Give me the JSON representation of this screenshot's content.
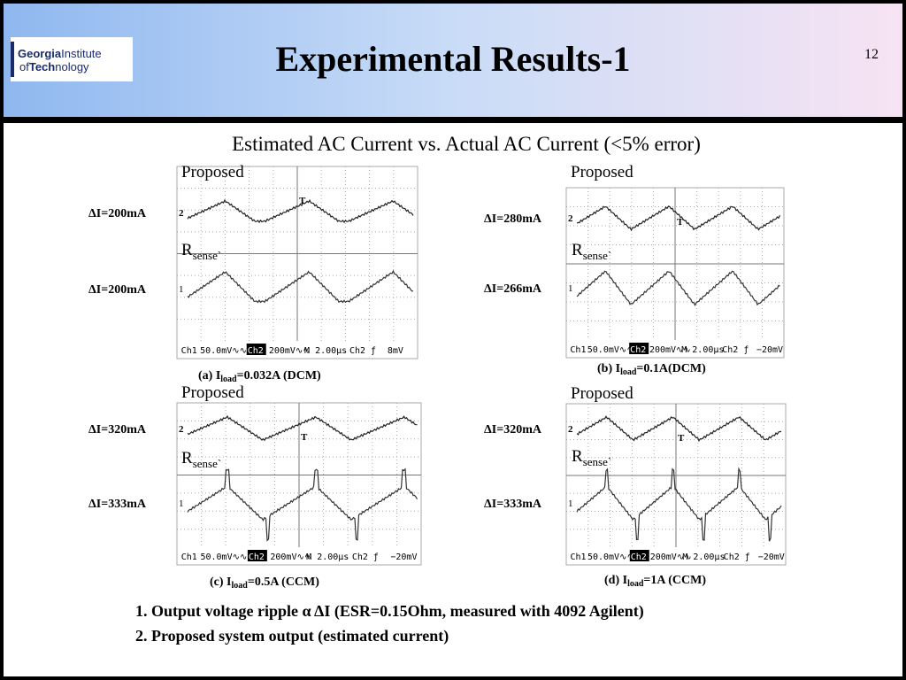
{
  "header": {
    "logo": {
      "line1a": "Georgia",
      "line1b": "Institute",
      "line2a": "of",
      "line2b": "Tech",
      "line2c": "nology"
    },
    "title": "Experimental Results-1",
    "page_number": "12"
  },
  "subtitle": "Estimated AC Current vs. Actual AC Current (<5% error)",
  "panels": [
    {
      "top_label": "Proposed",
      "bottom_label": "R",
      "bottom_label_sub": "sense`",
      "delta_top": "ΔI=200mA",
      "delta_bottom": "ΔI=200mA",
      "ch2_marker": "2",
      "ch1_marker": "1",
      "trigger_marker": "T",
      "caption": {
        "prefix": "(a) I",
        "sub": "load",
        "suffix": "=0.032A (DCM)"
      },
      "readout": [
        "Ch1",
        "50.0mV∿∿",
        "Ch2",
        "200mV∿∿",
        "M 2.00µs",
        "Ch2 ƒ",
        "8mV"
      ]
    },
    {
      "top_label": "Proposed",
      "bottom_label": "R",
      "bottom_label_sub": "sense`",
      "delta_top": "ΔI=280mA",
      "delta_bottom": "ΔI=266mA",
      "ch2_marker": "2",
      "ch1_marker": "1",
      "trigger_marker": "T",
      "caption": {
        "prefix": "(b) I",
        "sub": "load",
        "suffix": "=0.1A(DCM)"
      },
      "readout": [
        "Ch1",
        "50.0mV∿∿",
        "Ch2",
        "200mV∿∿",
        "M 2.00µs",
        "Ch2 ƒ",
        "−20mV"
      ]
    },
    {
      "top_label": "Proposed",
      "bottom_label": "R",
      "bottom_label_sub": "sense`",
      "delta_top": "ΔI=320mA",
      "delta_bottom": "ΔI=333mA",
      "ch2_marker": "2",
      "ch1_marker": "1",
      "trigger_marker": "T",
      "caption": {
        "prefix": "(c) I",
        "sub": "load",
        "suffix": "=0.5A (CCM)"
      },
      "readout": [
        "Ch1",
        "50.0mV∿∿",
        "Ch2",
        "200mV∿∿",
        "M 2.00µs",
        "Ch2 ƒ",
        "−20mV"
      ]
    },
    {
      "top_label": "Proposed",
      "bottom_label": "R",
      "bottom_label_sub": "sense`",
      "delta_top": "ΔI=320mA",
      "delta_bottom": "ΔI=333mA",
      "ch2_marker": "2",
      "ch1_marker": "1",
      "trigger_marker": "T",
      "caption": {
        "prefix": "(d) I",
        "sub": "load",
        "suffix": "=1A (CCM)"
      },
      "readout": [
        "Ch1",
        "50.0mV∿∿",
        "Ch2",
        "200mV∿∿",
        "M 2.00µs",
        "Ch2 ƒ",
        "−20mV"
      ]
    }
  ],
  "notes": [
    "1. Output voltage ripple α ΔI (ESR=0.15Ohm, measured with 4092 Agilent)",
    "2. Proposed system output (estimated current)"
  ]
}
